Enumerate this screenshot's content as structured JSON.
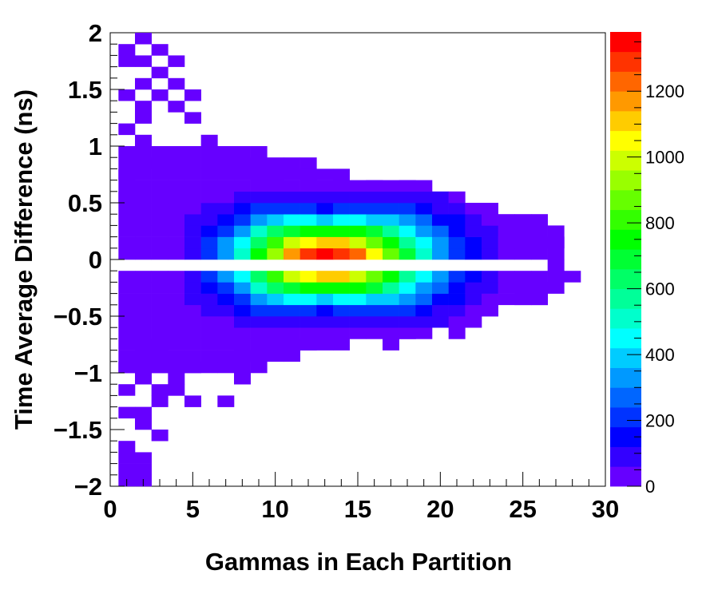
{
  "chart_data": {
    "type": "heatmap",
    "xlabel": "Gammas in Each Partition",
    "ylabel": "Time Average Difference (ns)",
    "xlim": [
      0,
      30
    ],
    "ylim": [
      -2,
      2
    ],
    "x_ticks": [
      "0",
      "5",
      "10",
      "15",
      "20",
      "25",
      "30"
    ],
    "y_ticks": [
      "−2",
      "−1.5",
      "−1",
      "−0.5",
      "0",
      "0.5",
      "1",
      "1.5",
      "2"
    ],
    "x_bin_width": 1,
    "y_bin_width": 0.1,
    "colorbar": {
      "range": [
        0,
        1380
      ],
      "ticks": [
        "0",
        "200",
        "400",
        "600",
        "800",
        "1000",
        "1200"
      ],
      "colors": [
        "#6600ff",
        "#3300ff",
        "#0000ff",
        "#0033ff",
        "#0066ff",
        "#0099ff",
        "#00ccff",
        "#00ffff",
        "#00ffcc",
        "#00ff99",
        "#00ff66",
        "#00ff33",
        "#00ff00",
        "#33ff00",
        "#66ff00",
        "#99ff00",
        "#ccff00",
        "#ffff00",
        "#ffcc00",
        "#ff9900",
        "#ff6600",
        "#ff3300",
        "#ff0000"
      ]
    },
    "bins": [
      [
        2,
        1.95,
        20
      ],
      [
        1,
        1.85,
        20
      ],
      [
        3,
        1.85,
        20
      ],
      [
        2,
        1.75,
        20
      ],
      [
        4,
        1.75,
        20
      ],
      [
        1,
        1.75,
        20
      ],
      [
        3,
        1.65,
        20
      ],
      [
        2,
        1.55,
        20
      ],
      [
        4,
        1.55,
        20
      ],
      [
        1,
        1.45,
        20
      ],
      [
        3,
        1.45,
        20
      ],
      [
        5,
        1.45,
        20
      ],
      [
        2,
        1.35,
        20
      ],
      [
        4,
        1.35,
        20
      ],
      [
        2,
        1.25,
        20
      ],
      [
        5,
        1.25,
        20
      ],
      [
        1,
        1.15,
        20
      ],
      [
        2,
        1.05,
        20
      ],
      [
        6,
        1.05,
        20
      ],
      [
        7,
        0.95,
        20
      ],
      [
        9,
        0.95,
        20
      ],
      [
        2,
        0.85,
        20
      ],
      [
        4,
        0.85,
        20
      ],
      [
        8,
        0.85,
        20
      ],
      [
        12,
        0.85,
        20
      ],
      [
        1,
        0.75,
        20
      ],
      [
        9,
        0.75,
        20
      ],
      [
        10,
        0.75,
        20
      ],
      [
        12,
        0.75,
        20
      ],
      [
        14,
        0.65,
        20
      ],
      [
        16,
        0.65,
        20
      ],
      [
        18,
        0.65,
        20
      ],
      [
        1,
        0.55,
        20
      ],
      [
        11,
        0.55,
        20
      ],
      [
        12,
        0.55,
        20
      ],
      [
        13,
        0.55,
        20
      ],
      [
        15,
        0.55,
        20
      ],
      [
        17,
        0.55,
        20
      ],
      [
        19,
        0.55,
        20
      ],
      [
        20,
        0.35,
        20
      ],
      [
        21,
        0.25,
        20
      ],
      [
        22,
        0.35,
        20
      ],
      [
        23,
        0.25,
        20
      ],
      [
        24,
        0.25,
        20
      ],
      [
        25,
        0.15,
        20
      ],
      [
        26,
        0.15,
        20
      ],
      [
        27,
        0.15,
        20
      ],
      [
        27,
        -0.05,
        20
      ],
      [
        28,
        -0.15,
        20
      ],
      [
        26,
        -0.25,
        20
      ],
      [
        22,
        -0.35,
        20
      ],
      [
        23,
        -0.45,
        20
      ],
      [
        25,
        -0.35,
        20
      ],
      [
        26,
        -0.35,
        20
      ],
      [
        20,
        -0.55,
        20
      ],
      [
        18,
        -0.65,
        20
      ],
      [
        17,
        -0.75,
        20
      ],
      [
        21,
        -0.65,
        20
      ],
      [
        22,
        -0.55,
        20
      ],
      [
        11,
        -0.75,
        20
      ],
      [
        10,
        -0.75,
        20
      ],
      [
        12,
        -0.75,
        20
      ],
      [
        8,
        -0.85,
        20
      ],
      [
        9,
        -0.85,
        20
      ],
      [
        3,
        -0.75,
        20
      ],
      [
        2,
        -0.85,
        20
      ],
      [
        1,
        -0.95,
        20
      ],
      [
        3,
        -0.95,
        20
      ],
      [
        5,
        -0.95,
        20
      ],
      [
        2,
        -1.05,
        20
      ],
      [
        4,
        -1.05,
        20
      ],
      [
        8,
        -1.05,
        20
      ],
      [
        9,
        -0.95,
        20
      ],
      [
        3,
        -1.15,
        20
      ],
      [
        1,
        -1.15,
        20
      ],
      [
        4,
        -1.15,
        20
      ],
      [
        3,
        -1.25,
        20
      ],
      [
        5,
        -1.25,
        20
      ],
      [
        7,
        -1.25,
        20
      ],
      [
        1,
        -1.35,
        20
      ],
      [
        2,
        -1.35,
        20
      ],
      [
        2,
        -1.45,
        20
      ],
      [
        3,
        -1.55,
        20
      ],
      [
        1,
        -1.65,
        20
      ],
      [
        1,
        -1.75,
        20
      ],
      [
        2,
        -1.75,
        20
      ],
      [
        1,
        -1.85,
        20
      ],
      [
        2,
        -1.85,
        20
      ],
      [
        2,
        -1.95,
        20
      ],
      [
        1,
        -1.95,
        20
      ]
    ]
  }
}
